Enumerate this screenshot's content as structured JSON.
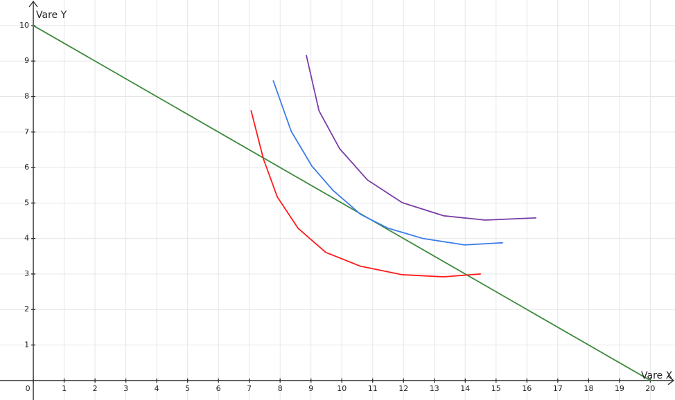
{
  "chart_data": {
    "type": "line",
    "x_label": "Vare X",
    "y_label": "Vare Y",
    "xlim": [
      -1.08,
      20.8
    ],
    "ylim": [
      -0.55,
      10.72
    ],
    "xticks": [
      0,
      1,
      2,
      3,
      4,
      5,
      6,
      7,
      8,
      9,
      10,
      11,
      12,
      13,
      14,
      15,
      16,
      17,
      18,
      19,
      20
    ],
    "yticks": [
      1,
      2,
      3,
      4,
      5,
      6,
      7,
      8,
      9,
      10
    ],
    "grid": true,
    "series": [
      {
        "color": "#3c8a3c",
        "x": [
          0,
          20
        ],
        "y": [
          10,
          0
        ]
      },
      {
        "color": "#ff1a1a",
        "x": [
          7.06,
          7.46,
          7.91,
          8.58,
          9.48,
          10.6,
          11.96,
          13.3,
          14.49
        ],
        "y": [
          7.6,
          6.24,
          5.17,
          4.29,
          3.61,
          3.22,
          2.98,
          2.92,
          3.0
        ]
      },
      {
        "color": "#3b7de8",
        "x": [
          7.78,
          8.36,
          9.03,
          9.71,
          10.61,
          11.5,
          12.63,
          13.98,
          15.21
        ],
        "y": [
          8.44,
          7.02,
          6.04,
          5.36,
          4.68,
          4.29,
          4.0,
          3.82,
          3.88
        ]
      },
      {
        "color": "#7a3ea8",
        "x": [
          8.85,
          9.26,
          9.93,
          10.83,
          11.96,
          13.3,
          14.65,
          16.29
        ],
        "y": [
          9.16,
          7.6,
          6.53,
          5.65,
          5.01,
          4.64,
          4.52,
          4.58
        ]
      }
    ]
  }
}
